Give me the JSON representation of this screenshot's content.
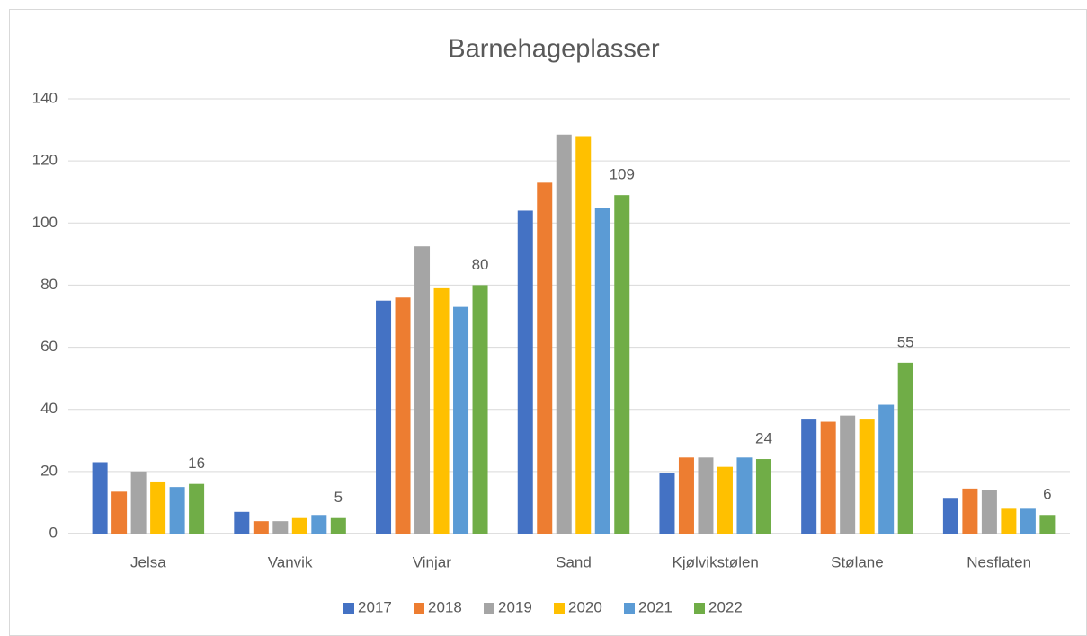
{
  "chart_data": {
    "type": "bar",
    "title": "Barnehageplasser",
    "categories": [
      "Jelsa",
      "Vanvik",
      "Vinjar",
      "Sand",
      "Kjølvikstølen",
      "Stølane",
      "Nesflaten"
    ],
    "series": [
      {
        "name": "2017",
        "color": "#4472c4",
        "values": [
          23,
          7,
          75,
          104,
          19.5,
          37,
          11.5
        ]
      },
      {
        "name": "2018",
        "color": "#ed7d31",
        "values": [
          13.5,
          4,
          76,
          113,
          24.5,
          36,
          14.5
        ]
      },
      {
        "name": "2019",
        "color": "#a5a5a5",
        "values": [
          20,
          4,
          92.5,
          128.5,
          24.5,
          38,
          14
        ]
      },
      {
        "name": "2020",
        "color": "#ffc000",
        "values": [
          16.5,
          5,
          79,
          128,
          21.5,
          37,
          8
        ]
      },
      {
        "name": "2021",
        "color": "#5b9bd5",
        "values": [
          15,
          6,
          73,
          105,
          24.5,
          41.5,
          8
        ]
      },
      {
        "name": "2022",
        "color": "#70ad47",
        "values": [
          16,
          5,
          80,
          109,
          24,
          55,
          6
        ],
        "show_labels": true
      }
    ],
    "ylim": [
      0,
      140
    ],
    "yticks": [
      0,
      20,
      40,
      60,
      80,
      100,
      120,
      140
    ],
    "grid": true,
    "legend": "bottom"
  }
}
